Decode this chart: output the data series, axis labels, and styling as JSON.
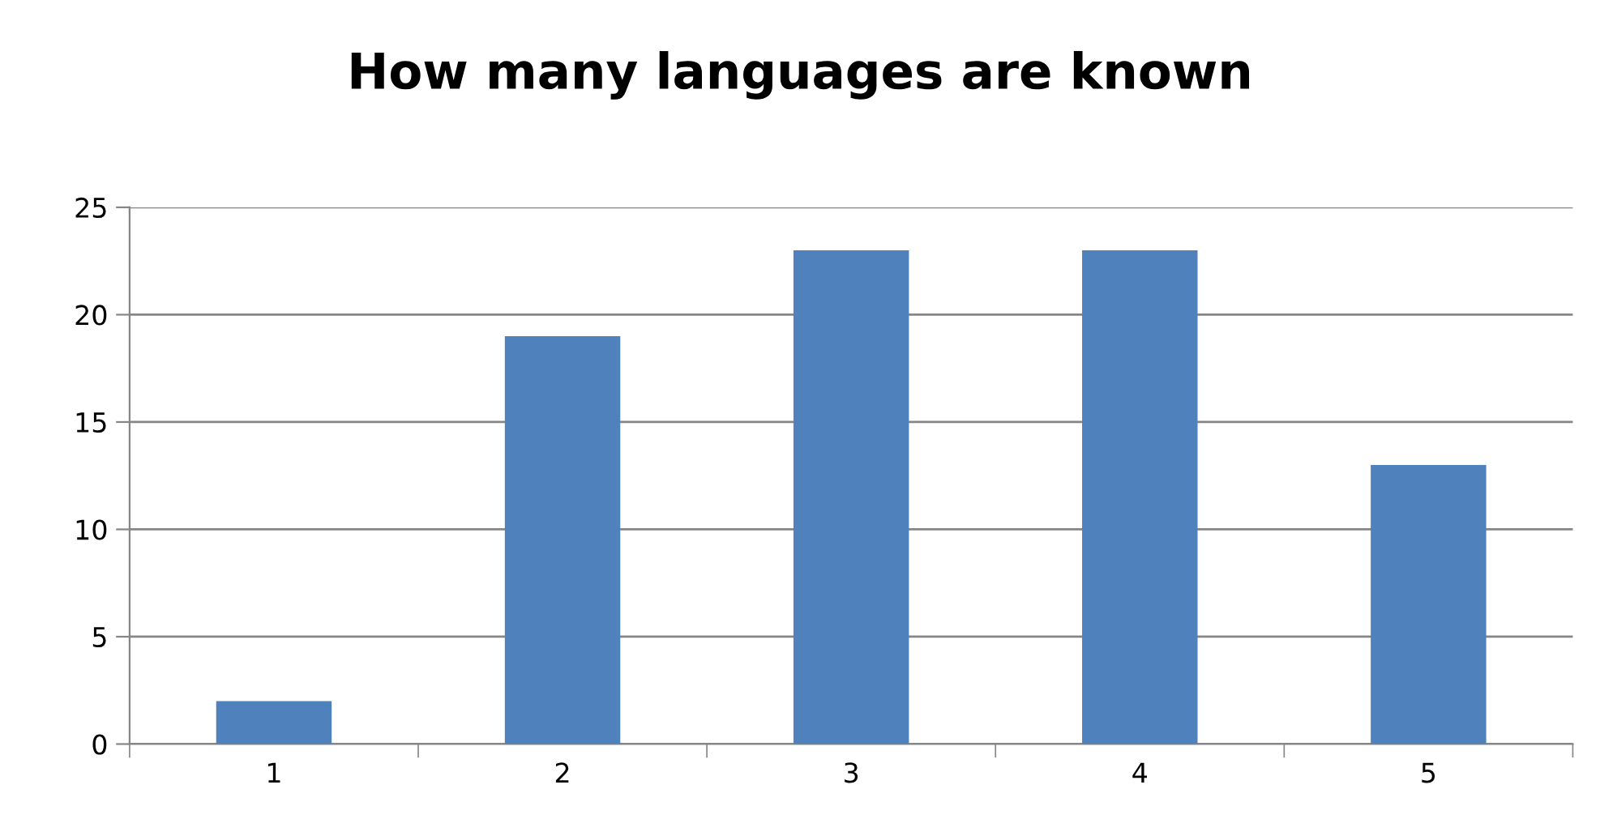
{
  "chart_data": {
    "type": "bar",
    "title": "How many languages are known",
    "categories": [
      "1",
      "2",
      "3",
      "4",
      "5"
    ],
    "values": [
      2,
      19,
      23,
      23,
      13
    ],
    "color": "#4f81bd",
    "ylim": [
      0,
      25
    ],
    "yticks": [
      0,
      5,
      10,
      15,
      20,
      25
    ],
    "grid": "y"
  }
}
